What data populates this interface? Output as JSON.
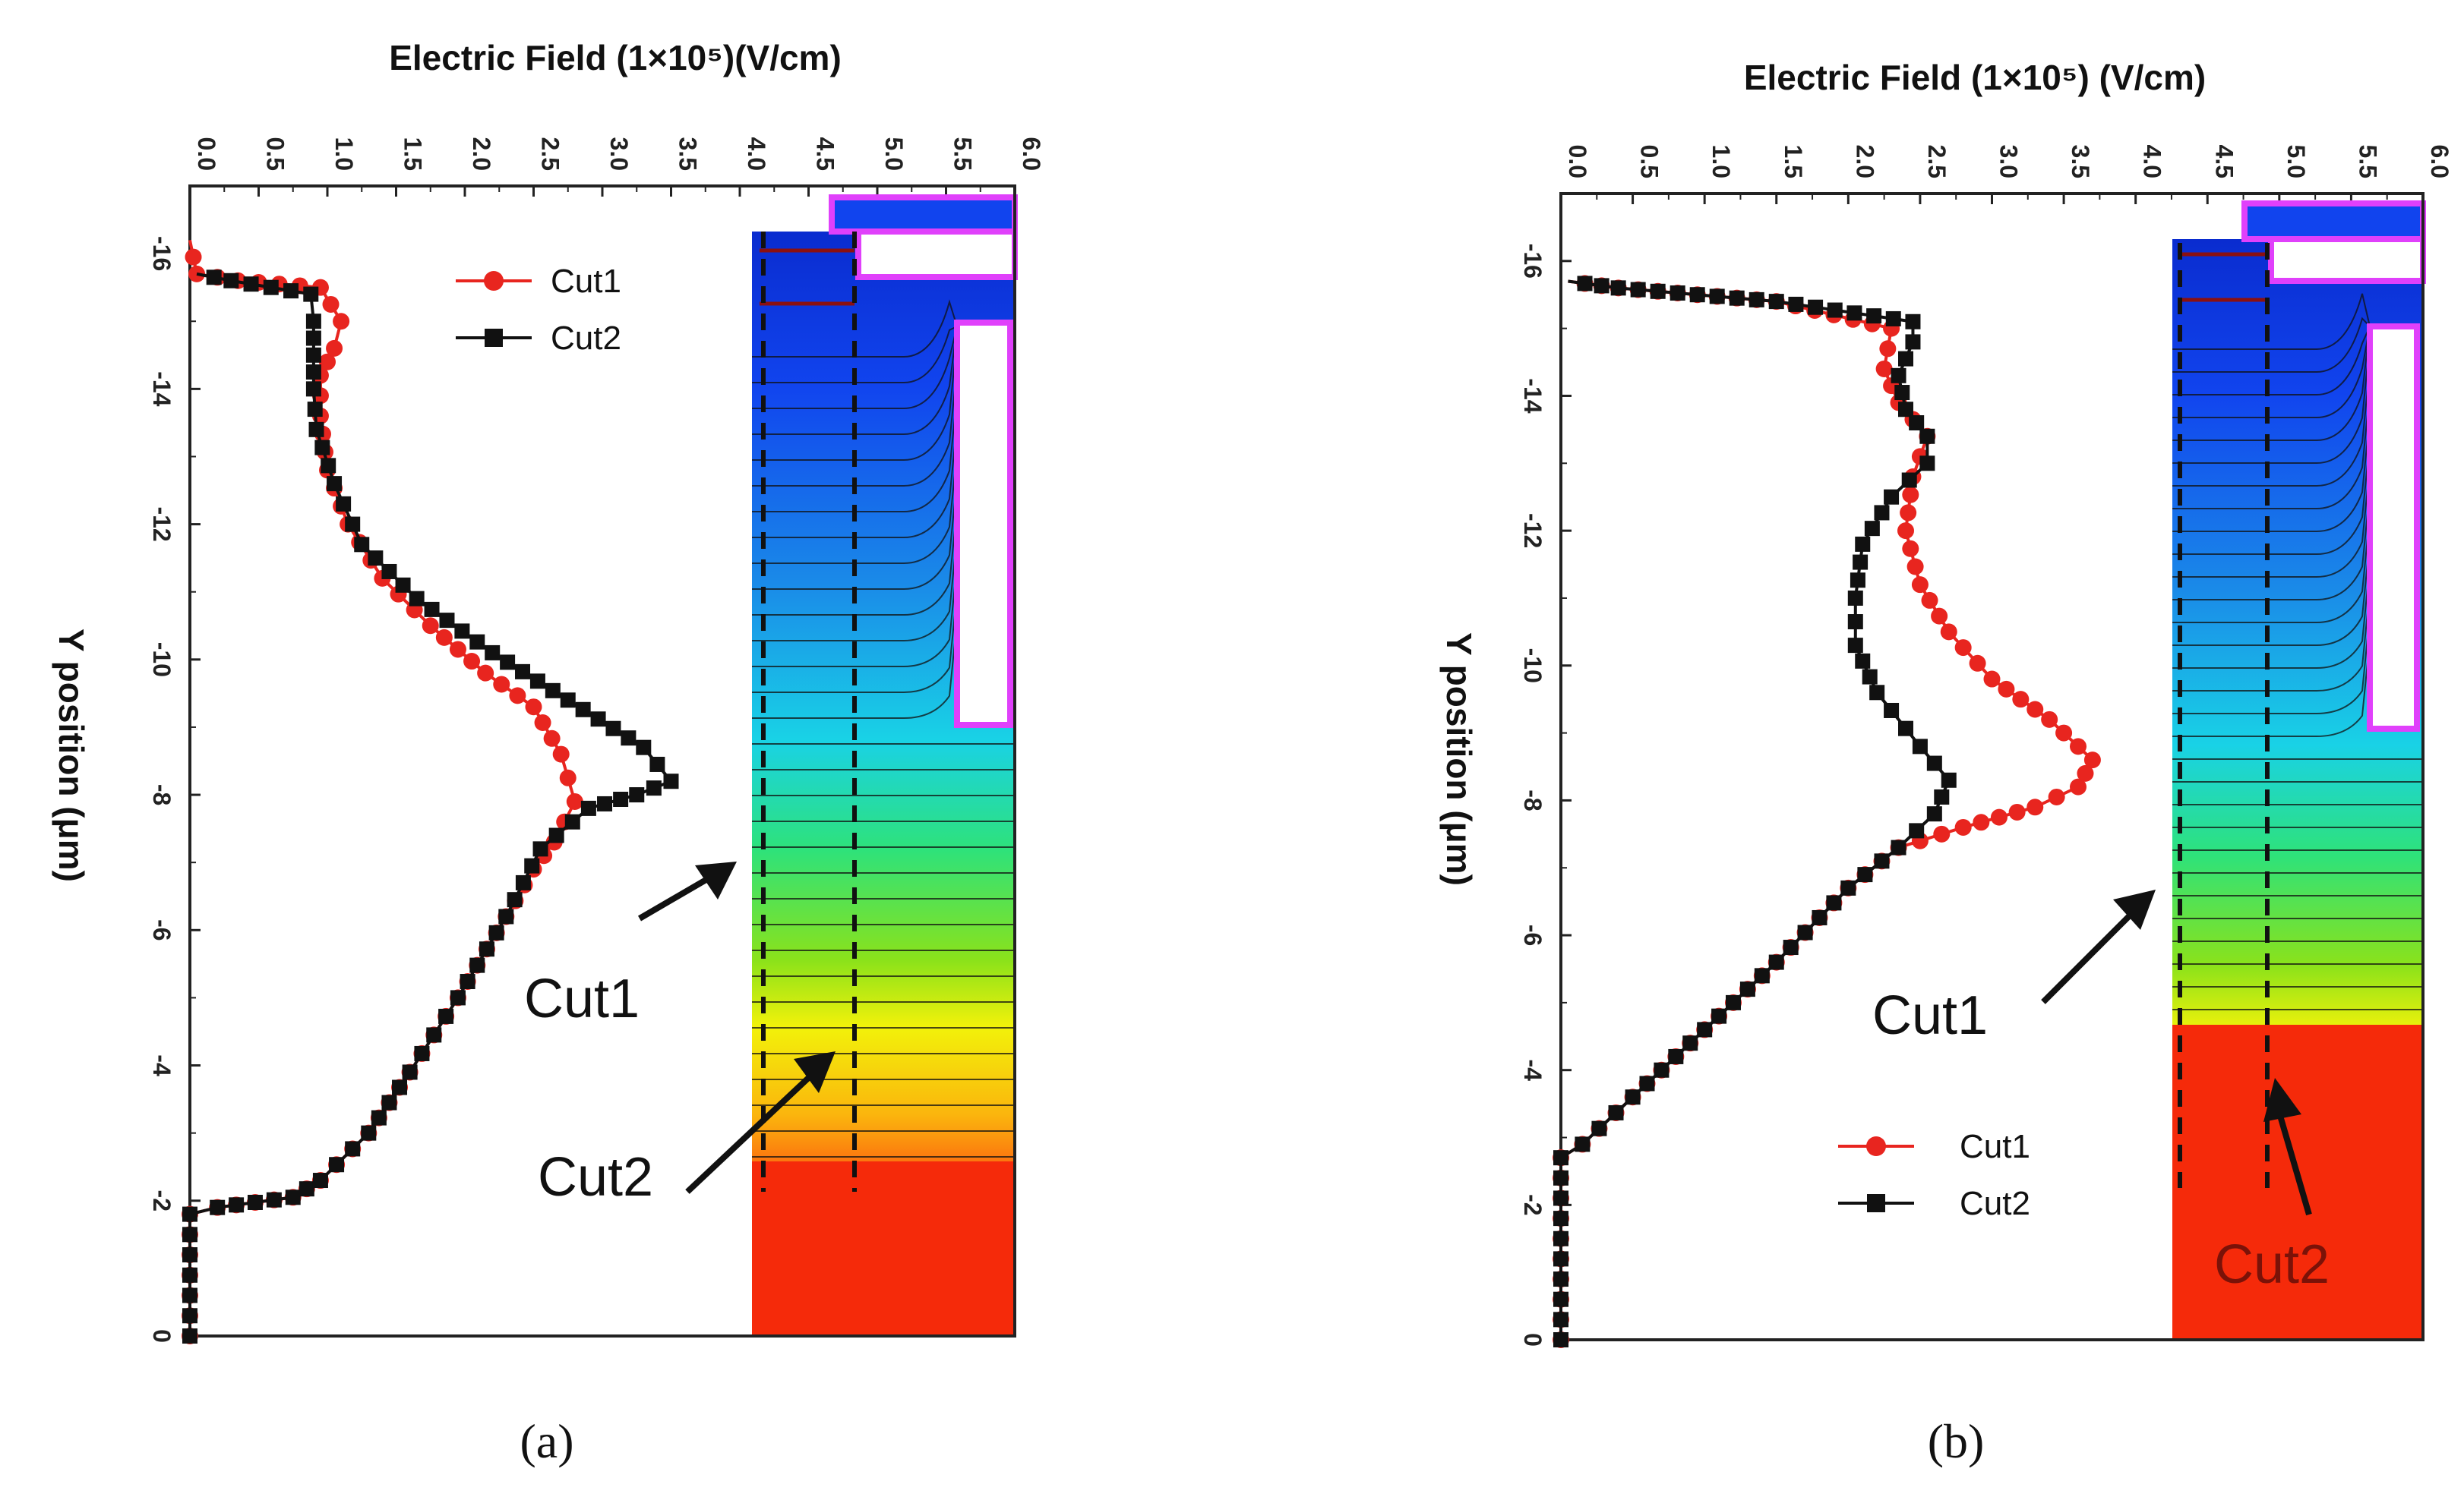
{
  "chart_data": [
    {
      "type": "line",
      "panel_label": "a",
      "xlabel": "Electric Field (1×10⁵)(V/cm)",
      "ylabel": "Y position (μm)",
      "xlim": [
        0,
        6
      ],
      "ylim": [
        -17,
        0
      ],
      "xticks": [
        "0.0",
        "0.5",
        "1.0",
        "1.5",
        "2.0",
        "2.5",
        "3.0",
        "3.5",
        "4.0",
        "4.5",
        "5.0",
        "5.5",
        "6.0"
      ],
      "yticks": [
        "-16",
        "-14",
        "-12",
        "-10",
        "-8",
        "-6",
        "-4",
        "-2",
        "0"
      ],
      "legend": [
        "Cut1",
        "Cut2"
      ],
      "annotations": [
        "Cut1",
        "Cut2"
      ],
      "series": [
        {
          "name": "Cut1",
          "color": "#e8251f",
          "marker": "circle",
          "points": [
            [
              0,
              0
            ],
            [
              0,
              -1.8
            ],
            [
              0.2,
              -1.9
            ],
            [
              0.75,
              -2.05
            ],
            [
              0.95,
              -2.3
            ],
            [
              1.3,
              -3.0
            ],
            [
              1.6,
              -3.9
            ],
            [
              1.95,
              -5.0
            ],
            [
              2.3,
              -6.2
            ],
            [
              2.5,
              -6.9
            ],
            [
              2.65,
              -7.3
            ],
            [
              2.8,
              -7.9
            ],
            [
              2.7,
              -8.6
            ],
            [
              2.5,
              -9.3
            ],
            [
              2.15,
              -9.8
            ],
            [
              1.75,
              -10.5
            ],
            [
              1.4,
              -11.2
            ],
            [
              1.15,
              -12.0
            ],
            [
              1.0,
              -12.8
            ],
            [
              0.95,
              -13.6
            ],
            [
              0.95,
              -14.2
            ],
            [
              1.05,
              -14.6
            ],
            [
              1.1,
              -15.0
            ],
            [
              0.95,
              -15.5
            ],
            [
              0.35,
              -15.6
            ],
            [
              0.05,
              -15.7
            ],
            [
              0,
              -16.2
            ]
          ]
        },
        {
          "name": "Cut2",
          "color": "#111111",
          "marker": "square",
          "points": [
            [
              0,
              0
            ],
            [
              0,
              -1.8
            ],
            [
              0.2,
              -1.9
            ],
            [
              0.75,
              -2.05
            ],
            [
              0.95,
              -2.3
            ],
            [
              1.3,
              -3.0
            ],
            [
              1.6,
              -3.9
            ],
            [
              1.95,
              -5.0
            ],
            [
              2.3,
              -6.2
            ],
            [
              2.55,
              -7.2
            ],
            [
              2.9,
              -7.8
            ],
            [
              3.25,
              -8.0
            ],
            [
              3.5,
              -8.2
            ],
            [
              3.3,
              -8.7
            ],
            [
              2.75,
              -9.4
            ],
            [
              2.2,
              -10.1
            ],
            [
              1.65,
              -10.9
            ],
            [
              1.25,
              -11.7
            ],
            [
              1.05,
              -12.6
            ],
            [
              0.92,
              -13.4
            ],
            [
              0.9,
              -14.0
            ],
            [
              0.9,
              -14.5
            ],
            [
              0.9,
              -15.0
            ],
            [
              0.88,
              -15.4
            ],
            [
              0.3,
              -15.6
            ],
            [
              0.05,
              -15.7
            ]
          ]
        }
      ]
    },
    {
      "type": "line",
      "panel_label": "b",
      "xlabel": "Electric Field (1×10⁵) (V/cm)",
      "ylabel": "Y position (μm)",
      "xlim": [
        0,
        6
      ],
      "ylim": [
        -17,
        0
      ],
      "xticks": [
        "0.0",
        "0.5",
        "1.0",
        "1.5",
        "2.0",
        "2.5",
        "3.0",
        "3.5",
        "4.0",
        "4.5",
        "5.0",
        "5.5",
        "6.0"
      ],
      "yticks": [
        "-16",
        "-14",
        "-12",
        "-10",
        "-8",
        "-6",
        "-4",
        "-2",
        "0"
      ],
      "legend": [
        "Cut1",
        "Cut2"
      ],
      "annotations": [
        "Cut1",
        "Cut2"
      ],
      "series": [
        {
          "name": "Cut1",
          "color": "#e8251f",
          "marker": "circle",
          "points": [
            [
              0,
              0
            ],
            [
              0,
              -2.7
            ],
            [
              0.15,
              -2.9
            ],
            [
              0.5,
              -3.6
            ],
            [
              1.0,
              -4.6
            ],
            [
              1.5,
              -5.6
            ],
            [
              2.0,
              -6.7
            ],
            [
              2.35,
              -7.3
            ],
            [
              2.8,
              -7.6
            ],
            [
              3.3,
              -7.9
            ],
            [
              3.6,
              -8.2
            ],
            [
              3.7,
              -8.6
            ],
            [
              3.4,
              -9.2
            ],
            [
              3.0,
              -9.8
            ],
            [
              2.7,
              -10.5
            ],
            [
              2.5,
              -11.2
            ],
            [
              2.4,
              -12.0
            ],
            [
              2.45,
              -12.8
            ],
            [
              2.55,
              -13.4
            ],
            [
              2.35,
              -13.9
            ],
            [
              2.25,
              -14.4
            ],
            [
              2.3,
              -15.0
            ],
            [
              1.5,
              -15.4
            ],
            [
              0.4,
              -15.6
            ],
            [
              0.05,
              -15.7
            ]
          ]
        },
        {
          "name": "Cut2",
          "color": "#111111",
          "marker": "square",
          "points": [
            [
              0,
              0
            ],
            [
              0,
              -2.7
            ],
            [
              0.15,
              -2.9
            ],
            [
              0.5,
              -3.6
            ],
            [
              1.0,
              -4.6
            ],
            [
              1.5,
              -5.6
            ],
            [
              2.0,
              -6.7
            ],
            [
              2.35,
              -7.3
            ],
            [
              2.6,
              -7.8
            ],
            [
              2.7,
              -8.3
            ],
            [
              2.5,
              -8.8
            ],
            [
              2.2,
              -9.6
            ],
            [
              2.05,
              -10.3
            ],
            [
              2.05,
              -11.0
            ],
            [
              2.1,
              -11.8
            ],
            [
              2.3,
              -12.5
            ],
            [
              2.55,
              -13.0
            ],
            [
              2.55,
              -13.4
            ],
            [
              2.4,
              -13.8
            ],
            [
              2.35,
              -14.3
            ],
            [
              2.45,
              -14.8
            ],
            [
              2.45,
              -15.1
            ],
            [
              1.5,
              -15.4
            ],
            [
              0.4,
              -15.6
            ],
            [
              0.05,
              -15.7
            ]
          ]
        }
      ]
    }
  ],
  "captions": {
    "a": "(a)",
    "b": "(b)"
  }
}
